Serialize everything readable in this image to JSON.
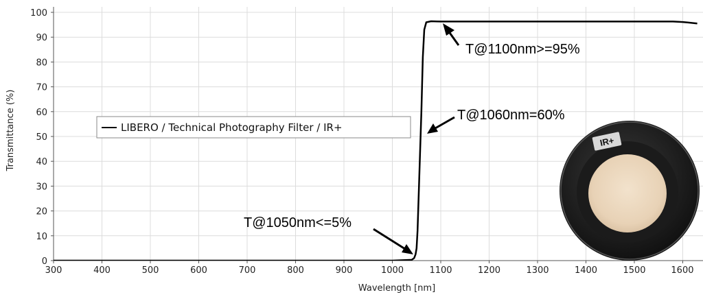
{
  "chart_data": {
    "type": "line",
    "title": "",
    "xlabel": "Wavelength [nm]",
    "ylabel": "Transmittance (%)",
    "xlim": [
      300,
      1630
    ],
    "ylim": [
      0,
      100
    ],
    "x_ticks": [
      300,
      400,
      500,
      600,
      700,
      800,
      900,
      1000,
      1100,
      1200,
      1300,
      1400,
      1500,
      1600
    ],
    "y_ticks": [
      0,
      10,
      20,
      30,
      40,
      50,
      60,
      70,
      80,
      90,
      100
    ],
    "grid": true,
    "legend": {
      "position": "middle-left",
      "entries": [
        "LIBERO / Technical Photography Filter /  IR+"
      ]
    },
    "series": [
      {
        "name": "LIBERO / Technical Photography Filter /  IR+",
        "color": "#000000",
        "x": [
          300,
          1000,
          1040,
          1045,
          1048,
          1050,
          1052,
          1055,
          1058,
          1060,
          1063,
          1066,
          1070,
          1080,
          1100,
          1200,
          1300,
          1400,
          1500,
          1580,
          1600,
          1610,
          1630
        ],
        "y": [
          0,
          0,
          0.3,
          1,
          2.5,
          5,
          12,
          30,
          48,
          60,
          82,
          93,
          96,
          96.4,
          96.3,
          96.3,
          96.3,
          96.3,
          96.3,
          96.3,
          96.1,
          95.9,
          95.5
        ]
      }
    ],
    "annotations": [
      {
        "text": "T@1100nm>=95%",
        "target": [
          1060,
          96
        ]
      },
      {
        "text": "T@1060nm=60%",
        "target": [
          1054,
          50
        ]
      },
      {
        "text": "T@1050nm<=5%",
        "target": [
          1042,
          2
        ]
      }
    ]
  },
  "photo": {
    "label": "IR+"
  }
}
